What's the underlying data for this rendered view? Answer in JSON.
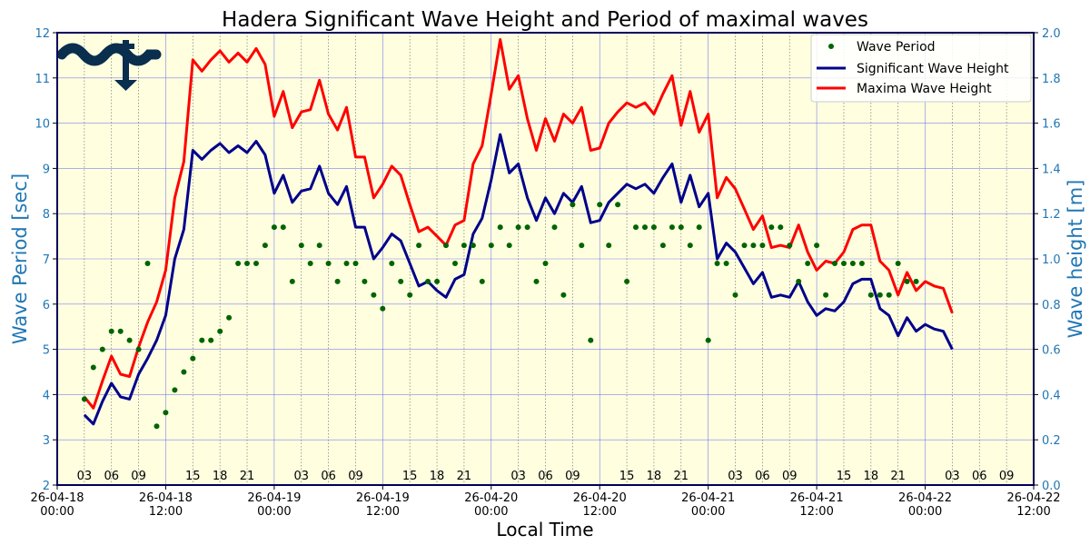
{
  "chart_data": {
    "type": "line",
    "title": "Hadera Significant Wave Height and Period of maximal waves",
    "xlabel": "Local Time",
    "ylabel_left": "Wave Period [sec]",
    "ylabel_right": "Wave height [m]",
    "ylim_left": [
      2,
      12
    ],
    "ylim_right": [
      0,
      2.0
    ],
    "xlim_hours": [
      0,
      108
    ],
    "x_tick_labels": [
      {
        "hour": 0,
        "date": "26-04-18",
        "time": "00:00"
      },
      {
        "hour": 12,
        "date": "26-04-18",
        "time": "12:00"
      },
      {
        "hour": 24,
        "date": "26-04-19",
        "time": "00:00"
      },
      {
        "hour": 36,
        "date": "26-04-19",
        "time": "12:00"
      },
      {
        "hour": 48,
        "date": "26-04-20",
        "time": "00:00"
      },
      {
        "hour": 60,
        "date": "26-04-20",
        "time": "12:00"
      },
      {
        "hour": 72,
        "date": "26-04-21",
        "time": "00:00"
      },
      {
        "hour": 84,
        "date": "26-04-21",
        "time": "12:00"
      },
      {
        "hour": 96,
        "date": "26-04-22",
        "time": "00:00"
      },
      {
        "hour": 108,
        "date": "26-04-22",
        "time": "12:00"
      }
    ],
    "hour_annotations": [
      {
        "hour": 3,
        "label": "03"
      },
      {
        "hour": 6,
        "label": "06"
      },
      {
        "hour": 9,
        "label": "09"
      },
      {
        "hour": 15,
        "label": "15"
      },
      {
        "hour": 18,
        "label": "18"
      },
      {
        "hour": 21,
        "label": "21"
      },
      {
        "hour": 27,
        "label": "03"
      },
      {
        "hour": 30,
        "label": "06"
      },
      {
        "hour": 33,
        "label": "09"
      },
      {
        "hour": 39,
        "label": "15"
      },
      {
        "hour": 42,
        "label": "18"
      },
      {
        "hour": 45,
        "label": "21"
      },
      {
        "hour": 51,
        "label": "03"
      },
      {
        "hour": 54,
        "label": "06"
      },
      {
        "hour": 57,
        "label": "09"
      },
      {
        "hour": 63,
        "label": "15"
      },
      {
        "hour": 66,
        "label": "18"
      },
      {
        "hour": 69,
        "label": "21"
      },
      {
        "hour": 75,
        "label": "03"
      },
      {
        "hour": 78,
        "label": "06"
      },
      {
        "hour": 81,
        "label": "09"
      },
      {
        "hour": 87,
        "label": "15"
      },
      {
        "hour": 90,
        "label": "18"
      },
      {
        "hour": 93,
        "label": "21"
      },
      {
        "hour": 99,
        "label": "03"
      },
      {
        "hour": 102,
        "label": "06"
      },
      {
        "hour": 105,
        "label": "09"
      }
    ],
    "y_ticks_left": [
      "2",
      "3",
      "4",
      "5",
      "6",
      "7",
      "8",
      "9",
      "10",
      "11",
      "12"
    ],
    "y_ticks_right": [
      "0.0",
      "0.2",
      "0.4",
      "0.6",
      "0.8",
      "1.0",
      "1.2",
      "1.4",
      "1.6",
      "1.8",
      "2.0"
    ],
    "legend": {
      "position": "top-right",
      "entries": [
        "Wave Period",
        "Significant Wave Height",
        "Maxima Wave Height"
      ]
    },
    "colors": {
      "plot_background": "#ffffe0",
      "grid": "#5555ee",
      "period": "#006400",
      "significant": "#00008b",
      "maxima": "#ff0000",
      "axis_label": "#1f77b4",
      "frame": "#00005a",
      "logo": "#0a2e4d"
    },
    "start_hour": 3,
    "series": [
      {
        "name": "Wave Period",
        "axis": "left",
        "style": "scatter",
        "values": [
          3.9,
          4.6,
          5.0,
          5.4,
          5.4,
          5.2,
          5.0,
          6.9,
          3.3,
          3.6,
          4.1,
          4.5,
          4.8,
          5.2,
          5.2,
          5.4,
          5.7,
          6.9,
          6.9,
          6.9,
          7.3,
          7.7,
          7.7,
          6.5,
          7.3,
          6.9,
          7.3,
          6.9,
          6.5,
          6.9,
          6.9,
          6.5,
          6.2,
          5.9,
          6.9,
          6.5,
          6.2,
          7.3,
          6.5,
          6.5,
          7.3,
          6.9,
          7.3,
          7.3,
          6.5,
          7.3,
          7.7,
          7.3,
          7.7,
          7.7,
          6.5,
          6.9,
          7.7,
          6.2,
          8.2,
          7.3,
          5.2,
          8.2,
          7.3,
          8.2,
          6.5,
          7.7,
          7.7,
          7.7,
          7.3,
          7.7,
          7.7,
          7.3,
          7.7,
          5.2,
          6.9,
          6.9,
          6.2,
          7.3,
          7.3,
          7.3,
          7.7,
          7.7,
          7.3,
          6.5,
          6.9,
          7.3,
          6.2,
          6.9,
          6.9,
          6.9,
          6.9,
          6.2,
          6.2,
          6.2,
          6.9,
          6.5,
          6.5
        ]
      },
      {
        "name": "Significant Wave Height",
        "axis": "right",
        "style": "line",
        "values": [
          0.31,
          0.27,
          0.37,
          0.45,
          0.39,
          0.38,
          0.49,
          0.56,
          0.64,
          0.75,
          1.0,
          1.13,
          1.48,
          1.44,
          1.48,
          1.51,
          1.47,
          1.5,
          1.47,
          1.52,
          1.46,
          1.29,
          1.37,
          1.25,
          1.3,
          1.31,
          1.41,
          1.29,
          1.24,
          1.32,
          1.14,
          1.14,
          1.0,
          1.05,
          1.11,
          1.08,
          0.98,
          0.88,
          0.9,
          0.86,
          0.83,
          0.91,
          0.93,
          1.11,
          1.18,
          1.35,
          1.55,
          1.38,
          1.42,
          1.27,
          1.17,
          1.27,
          1.2,
          1.29,
          1.25,
          1.32,
          1.16,
          1.17,
          1.25,
          1.29,
          1.33,
          1.31,
          1.33,
          1.29,
          1.36,
          1.42,
          1.25,
          1.37,
          1.23,
          1.29,
          1.0,
          1.07,
          1.03,
          0.96,
          0.89,
          0.94,
          0.83,
          0.84,
          0.83,
          0.9,
          0.81,
          0.75,
          0.78,
          0.77,
          0.81,
          0.89,
          0.91,
          0.91,
          0.78,
          0.75,
          0.66,
          0.74,
          0.68,
          0.71,
          0.69,
          0.68,
          0.6
        ]
      },
      {
        "name": "Maxima Wave Height",
        "axis": "right",
        "style": "line",
        "values": [
          0.39,
          0.34,
          0.46,
          0.57,
          0.49,
          0.48,
          0.61,
          0.72,
          0.81,
          0.95,
          1.27,
          1.43,
          1.88,
          1.83,
          1.88,
          1.92,
          1.87,
          1.91,
          1.87,
          1.93,
          1.86,
          1.63,
          1.74,
          1.58,
          1.65,
          1.66,
          1.79,
          1.64,
          1.57,
          1.67,
          1.45,
          1.45,
          1.27,
          1.33,
          1.41,
          1.37,
          1.24,
          1.12,
          1.14,
          1.1,
          1.06,
          1.15,
          1.17,
          1.42,
          1.5,
          1.73,
          1.97,
          1.75,
          1.81,
          1.62,
          1.48,
          1.62,
          1.52,
          1.64,
          1.6,
          1.67,
          1.48,
          1.49,
          1.6,
          1.65,
          1.69,
          1.67,
          1.69,
          1.64,
          1.73,
          1.81,
          1.59,
          1.74,
          1.56,
          1.64,
          1.27,
          1.36,
          1.31,
          1.22,
          1.13,
          1.19,
          1.05,
          1.06,
          1.05,
          1.15,
          1.03,
          0.95,
          0.99,
          0.98,
          1.03,
          1.13,
          1.15,
          1.15,
          0.99,
          0.95,
          0.84,
          0.94,
          0.86,
          0.9,
          0.88,
          0.87,
          0.76
        ]
      }
    ]
  }
}
